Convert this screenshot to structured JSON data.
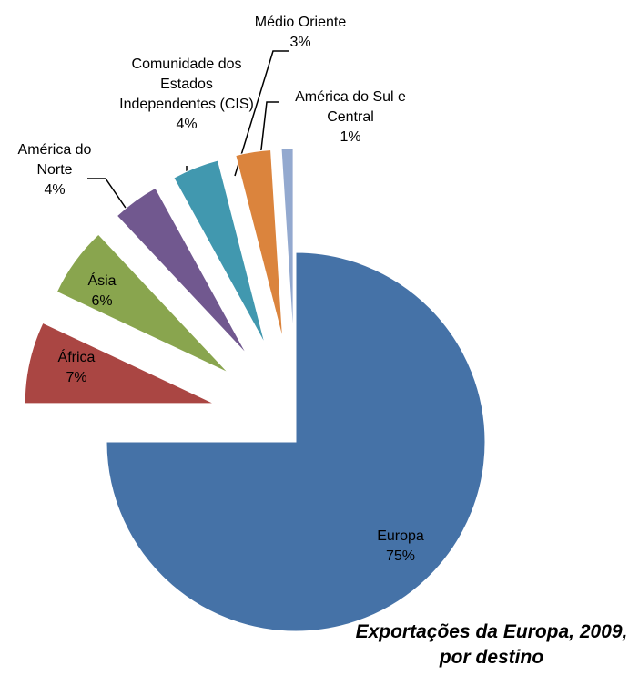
{
  "chart_data": {
    "type": "pie",
    "title": "Exportações da Europa, 2009, por destino",
    "categories": [
      "Europa",
      "África",
      "Ásia",
      "América do Norte",
      "Comunidade dos Estados Independentes (CIS)",
      "Médio Oriente",
      "América do Sul e Central"
    ],
    "values": [
      75,
      7,
      6,
      4,
      4,
      3,
      1
    ],
    "value_labels": [
      "75%",
      "7%",
      "6%",
      "4%",
      "4%",
      "3%",
      "1%"
    ],
    "colors": [
      "#4572a7",
      "#aa4643",
      "#89a54e",
      "#71588f",
      "#4198af",
      "#db843d",
      "#93a9cf"
    ]
  }
}
